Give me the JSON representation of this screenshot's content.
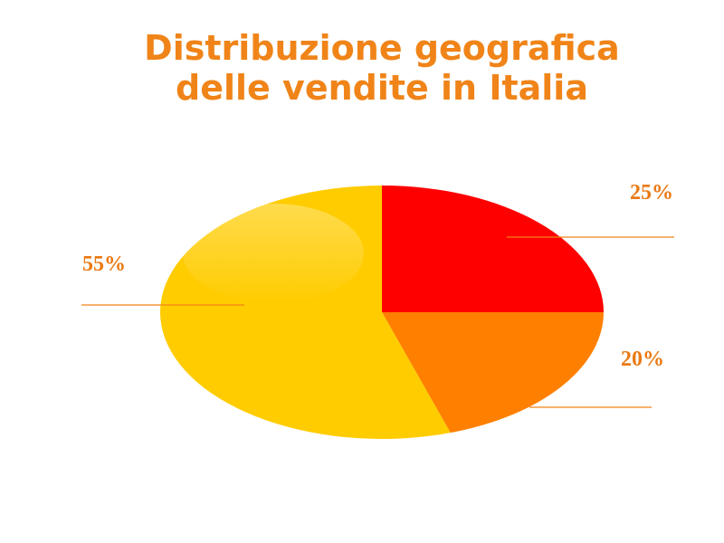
{
  "chart_data": {
    "type": "pie",
    "title": [
      "Distribuzione geografica",
      "delle vendite in Italia"
    ],
    "values": [
      25,
      20,
      55
    ],
    "value_labels": [
      "25%",
      "20%",
      "55%"
    ],
    "colors": [
      "#ff0000",
      "#ff8000",
      "#ffcc00"
    ]
  }
}
